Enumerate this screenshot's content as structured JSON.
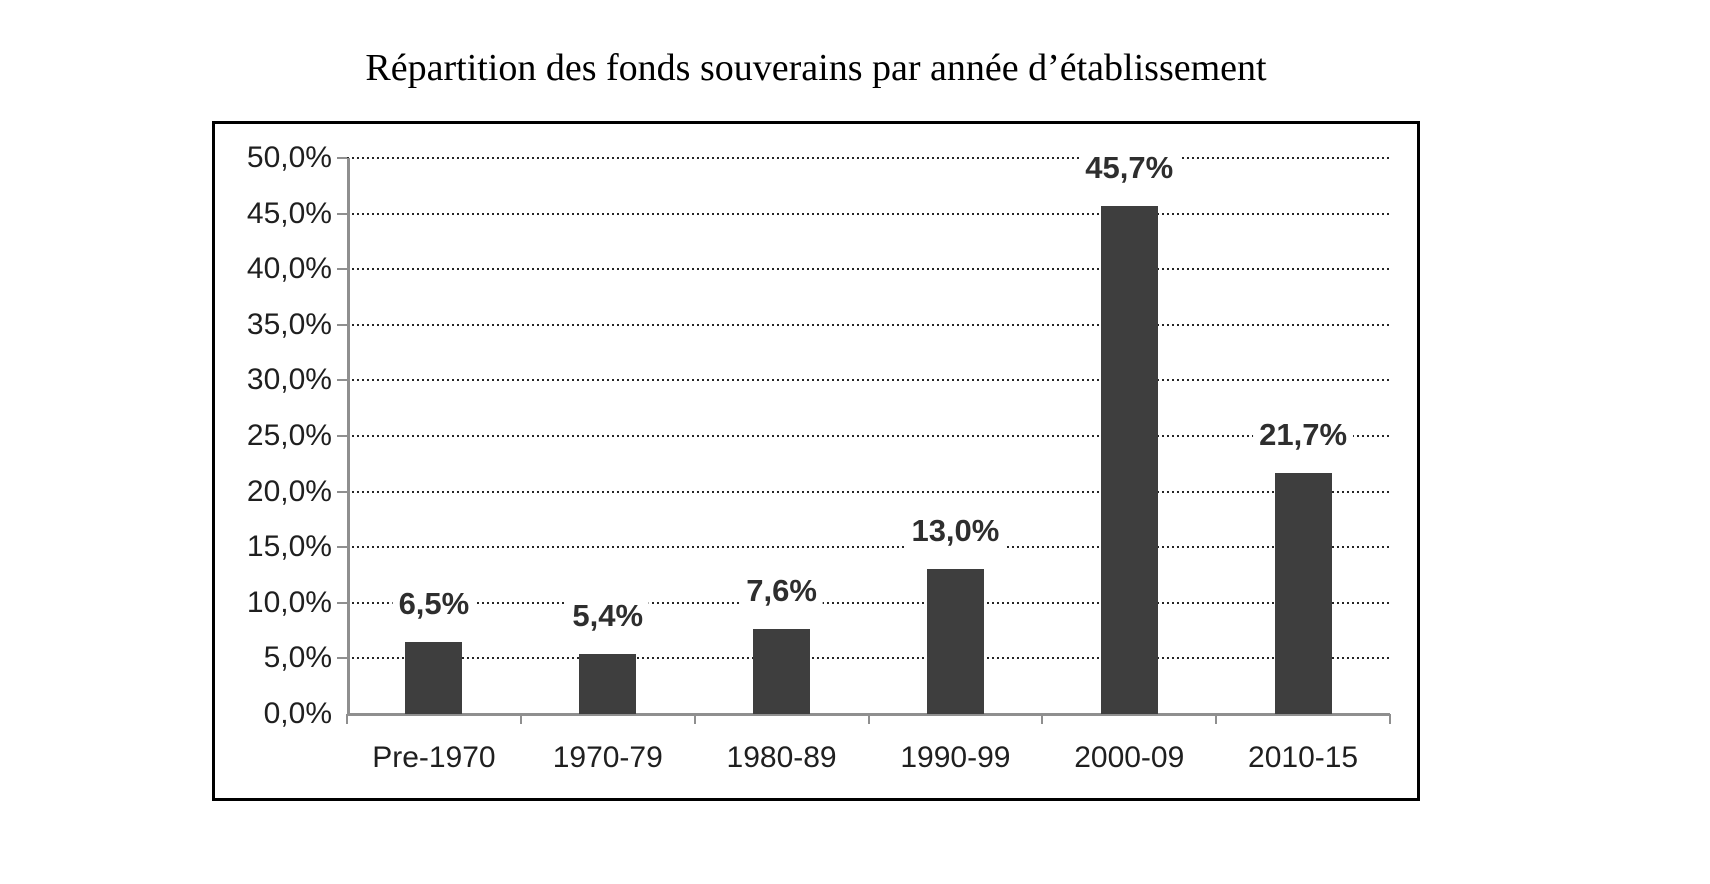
{
  "page": {
    "background": "#ffffff"
  },
  "chart_data": {
    "type": "bar",
    "title": "Répartition des fonds souverains par année d’établissement",
    "categories": [
      "Pre-1970",
      "1970-79",
      "1980-89",
      "1990-99",
      "2000-09",
      "2010-15"
    ],
    "values": [
      6.5,
      5.4,
      7.6,
      13.0,
      45.7,
      21.7
    ],
    "value_labels": [
      "6,5%",
      "5,4%",
      "7,6%",
      "13,0%",
      "45,7%",
      "21,7%"
    ],
    "y_ticks": [
      {
        "value": 0,
        "label": "0,0%"
      },
      {
        "value": 5,
        "label": "5,0%"
      },
      {
        "value": 10,
        "label": "10,0%"
      },
      {
        "value": 15,
        "label": "15,0%"
      },
      {
        "value": 20,
        "label": "20,0%"
      },
      {
        "value": 25,
        "label": "25,0%"
      },
      {
        "value": 30,
        "label": "30,0%"
      },
      {
        "value": 35,
        "label": "35,0%"
      },
      {
        "value": 40,
        "label": "40,0%"
      },
      {
        "value": 45,
        "label": "45,0%"
      },
      {
        "value": 50,
        "label": "50,0%"
      }
    ],
    "ylim": [
      0,
      50
    ],
    "xlabel": "",
    "ylabel": "",
    "legend_position": "none",
    "grid": "horizontal-dotted",
    "bar_color": "#3e3e3e",
    "axis_color": "#8f8f8f",
    "gridline_color": "#262626",
    "text_color": "#1f1f1f",
    "frame_border_color": "#000000"
  }
}
